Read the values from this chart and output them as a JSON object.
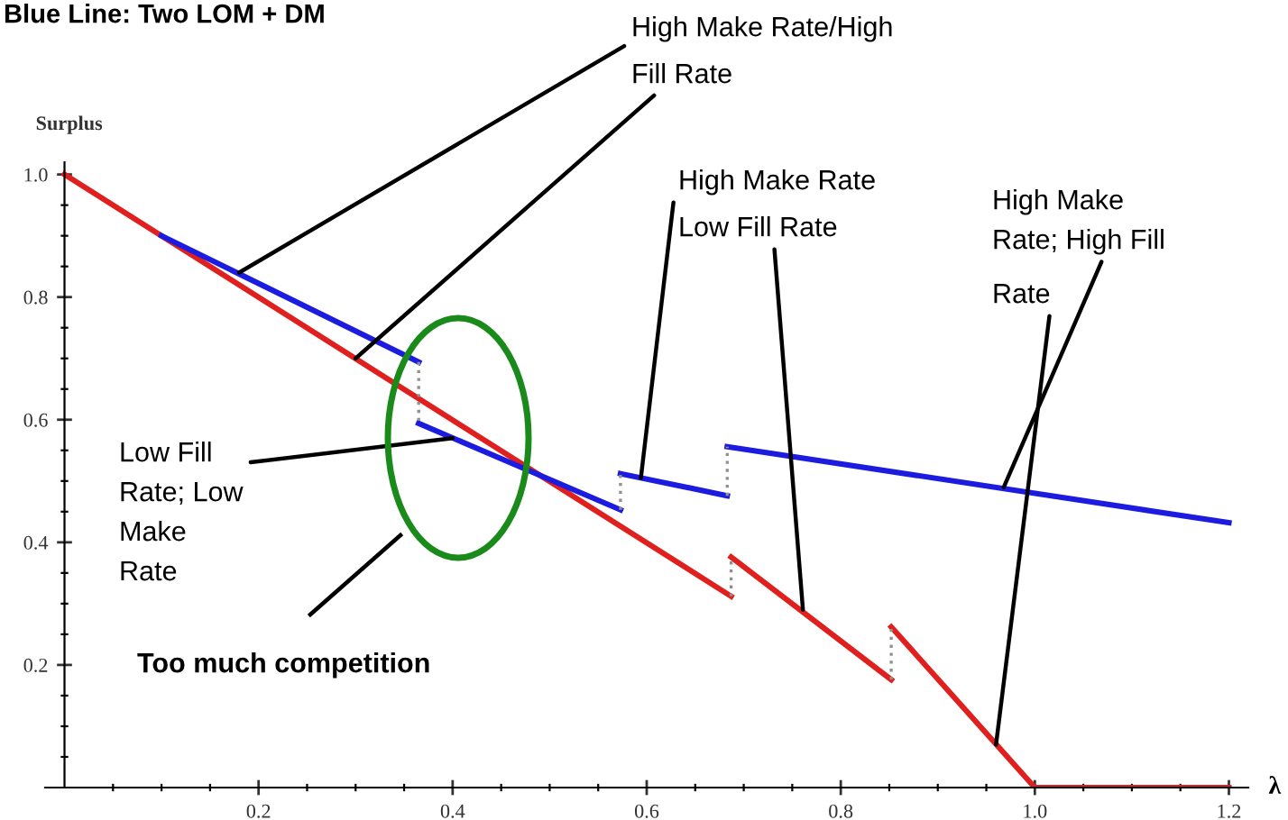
{
  "chart_data": {
    "type": "line",
    "title": "Blue Line: Two LOM + DM",
    "xlabel": "λ",
    "ylabel": "Surplus",
    "annotations": [
      {
        "text": "High Make Rate/High",
        "x": 0.18,
        "y": 0.84
      },
      {
        "text": "Fill Rate",
        "x": 0.3,
        "y": 0.7
      },
      {
        "text": "High Make Rate",
        "x": 0.594,
        "y": 0.505
      },
      {
        "text": "Low Fill Rate",
        "x": 0.761,
        "y": 0.29
      },
      {
        "text": "High Make\nRate; High Fill",
        "x": 0.968,
        "y": 0.49
      },
      {
        "text": "Rate",
        "x": 0.96,
        "y": 0.07
      },
      {
        "text": "Low Fill\nRate; Low\nMake\nRate",
        "x": 0.4,
        "y": 0.57
      },
      "Too much competition"
    ],
    "xlim": [
      -0.02,
      1.22
    ],
    "ylim": [
      0,
      1.02
    ],
    "xticks": [
      {
        "value": 0.05,
        "label": null
      },
      {
        "value": 0.1,
        "label": null
      },
      {
        "value": 0.15,
        "label": null
      },
      {
        "value": 0.2,
        "label": "0.2"
      },
      {
        "value": 0.25,
        "label": null
      },
      {
        "value": 0.3,
        "label": null
      },
      {
        "value": 0.35,
        "label": null
      },
      {
        "value": 0.4,
        "label": "0.4"
      },
      {
        "value": 0.45,
        "label": null
      },
      {
        "value": 0.5,
        "label": null
      },
      {
        "value": 0.55,
        "label": null
      },
      {
        "value": 0.6,
        "label": "0.6"
      },
      {
        "value": 0.65,
        "label": null
      },
      {
        "value": 0.7,
        "label": null
      },
      {
        "value": 0.75,
        "label": null
      },
      {
        "value": 0.8,
        "label": "0.8"
      },
      {
        "value": 0.85,
        "label": null
      },
      {
        "value": 0.9,
        "label": null
      },
      {
        "value": 0.95,
        "label": null
      },
      {
        "value": 1.0,
        "label": "1.0"
      },
      {
        "value": 1.05,
        "label": null
      },
      {
        "value": 1.1,
        "label": null
      },
      {
        "value": 1.15,
        "label": null
      },
      {
        "value": 1.2,
        "label": "1.2"
      }
    ],
    "yticks": [
      {
        "value": 0.05,
        "label": null
      },
      {
        "value": 0.1,
        "label": null
      },
      {
        "value": 0.15,
        "label": null
      },
      {
        "value": 0.2,
        "label": "0.2"
      },
      {
        "value": 0.25,
        "label": null
      },
      {
        "value": 0.3,
        "label": null
      },
      {
        "value": 0.35,
        "label": null
      },
      {
        "value": 0.4,
        "label": "0.4"
      },
      {
        "value": 0.45,
        "label": null
      },
      {
        "value": 0.5,
        "label": null
      },
      {
        "value": 0.55,
        "label": null
      },
      {
        "value": 0.6,
        "label": "0.6"
      },
      {
        "value": 0.65,
        "label": null
      },
      {
        "value": 0.7,
        "label": null
      },
      {
        "value": 0.75,
        "label": null
      },
      {
        "value": 0.8,
        "label": "0.8"
      },
      {
        "value": 0.85,
        "label": null
      },
      {
        "value": 0.9,
        "label": null
      },
      {
        "value": 0.95,
        "label": null
      },
      {
        "value": 1.0,
        "label": "1.0"
      }
    ],
    "grid": false,
    "marker": "none",
    "series": [
      {
        "color": "#e0201e",
        "line_style": "solid",
        "x": [
          0,
          0.687,
          null,
          0.687,
          0.852,
          null,
          0.852,
          1.0,
          1.2
        ],
        "values": [
          1.0,
          0.312,
          null,
          0.376,
          0.176,
          null,
          0.262,
          0,
          0
        ]
      },
      {
        "color": "#1c1ce0",
        "line_style": "solid",
        "x": [
          0.1,
          0.365,
          null,
          0.365,
          0.573,
          null,
          0.573,
          0.683,
          null,
          0.683,
          1.2
        ],
        "values": [
          0.9,
          0.694,
          null,
          0.594,
          0.453,
          null,
          0.512,
          0.476,
          null,
          0.556,
          0.432
        ]
      },
      {
        "color": "#909090",
        "line_style": "dotted",
        "x": [
          0.365,
          0.365,
          null,
          0.573,
          0.573,
          null,
          0.683,
          0.683,
          null,
          0.687,
          0.687,
          null,
          0.852,
          0.852
        ],
        "values": [
          0.694,
          0.594,
          null,
          0.453,
          0.512,
          null,
          0.476,
          0.556,
          null,
          0.312,
          0.376,
          null,
          0.176,
          0.262
        ]
      }
    ]
  }
}
